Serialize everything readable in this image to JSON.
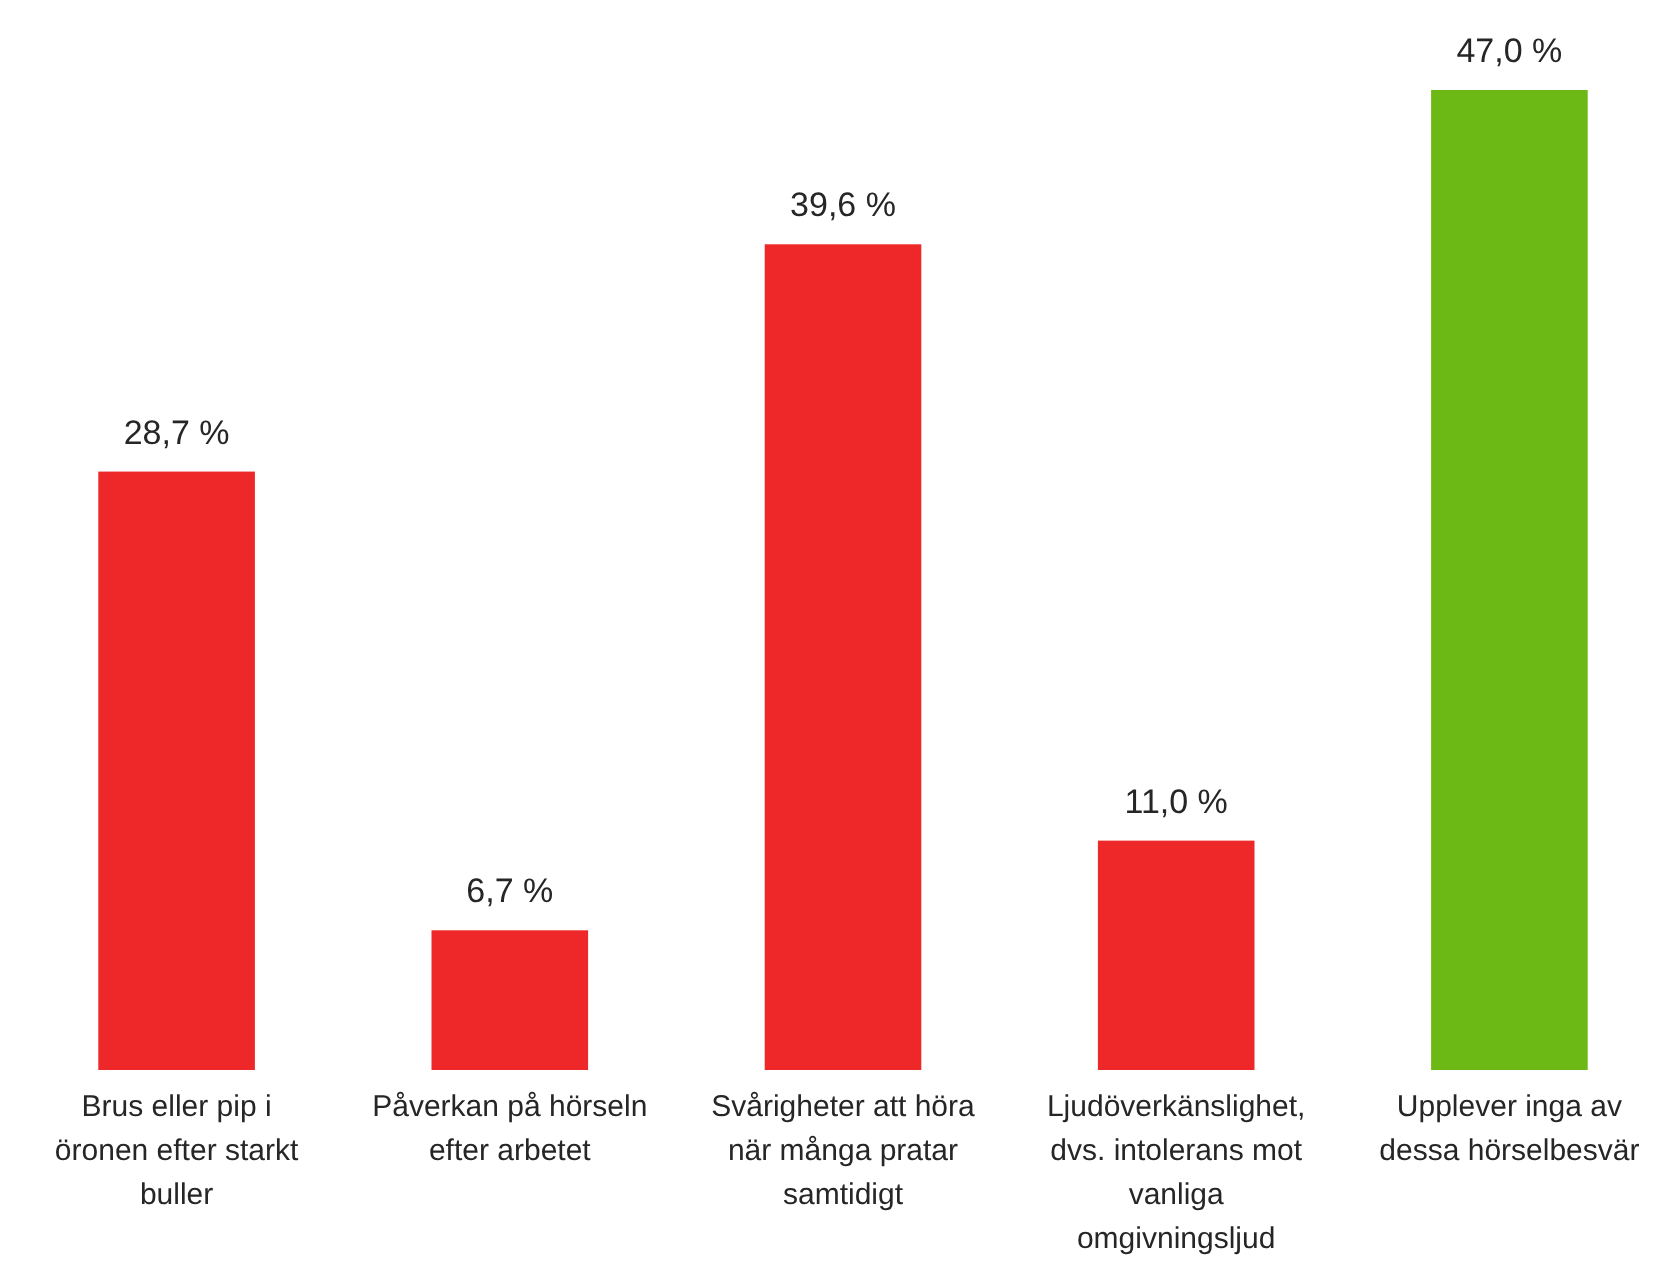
{
  "chart_data": {
    "type": "bar",
    "categories": [
      "Brus eller pip i öronen efter starkt buller",
      "Påverkan på hörseln efter arbetet",
      "Svårigheter att höra när många pratar samtidigt",
      "Ljudöverkänslighet, dvs. intolerans mot vanliga omgivningsljud",
      "Upplever inga av dessa hörselbesvär"
    ],
    "values": [
      28.7,
      6.7,
      39.6,
      11.0,
      47.0
    ],
    "colors": [
      "#ee2828",
      "#ee2828",
      "#ee2828",
      "#ee2828",
      "#6cb815"
    ],
    "value_labels": [
      "28,7 %",
      "6,7 %",
      "39,6 %",
      "11,0 %",
      "47,0 %"
    ]
  }
}
